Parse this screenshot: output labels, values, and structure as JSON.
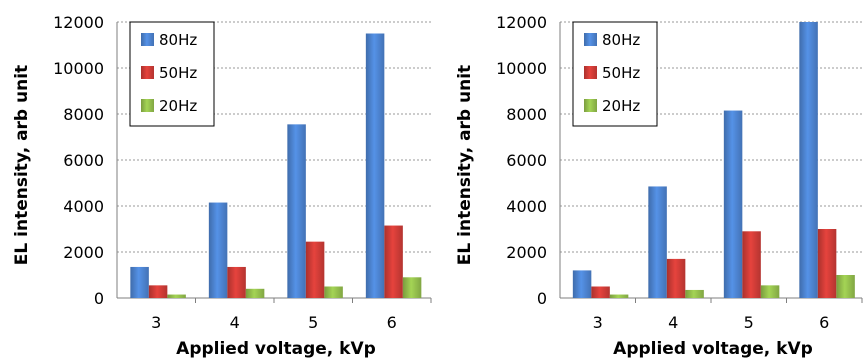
{
  "chart_data": [
    {
      "type": "bar",
      "categories": [
        "3",
        "4",
        "5",
        "6"
      ],
      "xlabel": "Applied voltage, kVp",
      "ylabel": "EL intensity, arb unit",
      "ylim": [
        0,
        12000
      ],
      "yticks": [
        0,
        2000,
        4000,
        6000,
        8000,
        10000,
        12000
      ],
      "grid": true,
      "legend": "top-left",
      "series": [
        {
          "name": "80Hz",
          "color": "#4a7fc9",
          "values": [
            1350,
            4150,
            7550,
            11500
          ]
        },
        {
          "name": "50Hz",
          "color": "#c83a35",
          "values": [
            550,
            1350,
            2450,
            3150
          ]
        },
        {
          "name": "20Hz",
          "color": "#8fb84a",
          "values": [
            150,
            400,
            500,
            900
          ]
        }
      ]
    },
    {
      "type": "bar",
      "categories": [
        "3",
        "4",
        "5",
        "6"
      ],
      "xlabel": "Applied voltage, kVp",
      "ylabel": "EL intensity, arb unit",
      "ylim": [
        0,
        12000
      ],
      "yticks": [
        0,
        2000,
        4000,
        6000,
        8000,
        10000,
        12000
      ],
      "grid": true,
      "legend": "top-left",
      "series": [
        {
          "name": "80Hz",
          "color": "#4a7fc9",
          "values": [
            1200,
            4850,
            8150,
            12000
          ]
        },
        {
          "name": "50Hz",
          "color": "#c83a35",
          "values": [
            500,
            1700,
            2900,
            3000
          ]
        },
        {
          "name": "20Hz",
          "color": "#8fb84a",
          "values": [
            150,
            350,
            550,
            1000
          ]
        }
      ]
    }
  ]
}
